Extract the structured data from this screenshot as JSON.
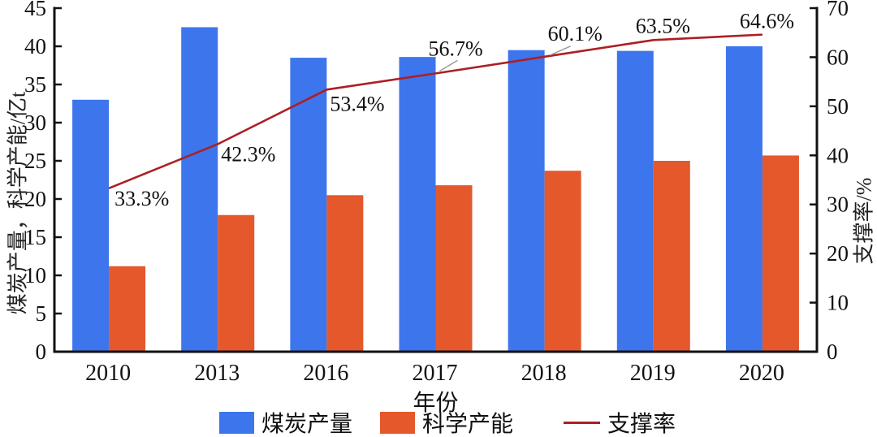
{
  "chart_data": {
    "type": "bar",
    "subtype": "bar+line-combo",
    "title": "",
    "categories": [
      "2010",
      "2013",
      "2016",
      "2017",
      "2018",
      "2019",
      "2020"
    ],
    "series": [
      {
        "name": "煤炭产量",
        "kind": "bar",
        "axis": "left",
        "color": "#3D75EC",
        "values": [
          33.0,
          42.5,
          38.5,
          38.6,
          39.5,
          39.4,
          40.0
        ]
      },
      {
        "name": "科学产能",
        "kind": "bar",
        "axis": "left",
        "color": "#E4582B",
        "values": [
          11.2,
          17.9,
          20.5,
          21.8,
          23.7,
          25.0,
          25.7
        ]
      },
      {
        "name": "支撑率",
        "kind": "line",
        "axis": "right",
        "color": "#AC1F24",
        "values": [
          33.3,
          42.3,
          53.4,
          56.7,
          60.1,
          63.5,
          64.6
        ],
        "point_labels": [
          {
            "text": "33.3%",
            "dx": 7,
            "dy": 21
          },
          {
            "text": "42.3%",
            "dx": 4,
            "dy": 21
          },
          {
            "text": "53.4%",
            "dx": 4,
            "dy": 26
          },
          {
            "text": "56.7%",
            "dx": -9,
            "dy": -22,
            "leader": [
              [
                5,
                -3
              ],
              [
                27,
                -16
              ]
            ]
          },
          {
            "text": "60.1%",
            "dx": 4,
            "dy": -20,
            "leader": [
              [
                7,
                -2
              ],
              [
                32,
                -13
              ]
            ]
          },
          {
            "text": "63.5%",
            "dx": -22,
            "dy": -9
          },
          {
            "text": "64.6%",
            "dx": -28,
            "dy": -8
          }
        ]
      }
    ],
    "xlabel": "年份",
    "ylabel_left": "煤炭产量，科学产能/亿t",
    "ylabel_right": "支撑率/%",
    "ylim_left": [
      0,
      45
    ],
    "yticks_left": [
      0,
      5,
      10,
      15,
      20,
      25,
      30,
      35,
      40,
      45
    ],
    "ylim_right": [
      0,
      70
    ],
    "yticks_right": [
      0,
      10,
      20,
      30,
      40,
      50,
      60,
      70
    ],
    "grid": false,
    "legend_position": "bottom",
    "axis_color": "#111111",
    "leader_color": "#9a9a9a"
  }
}
